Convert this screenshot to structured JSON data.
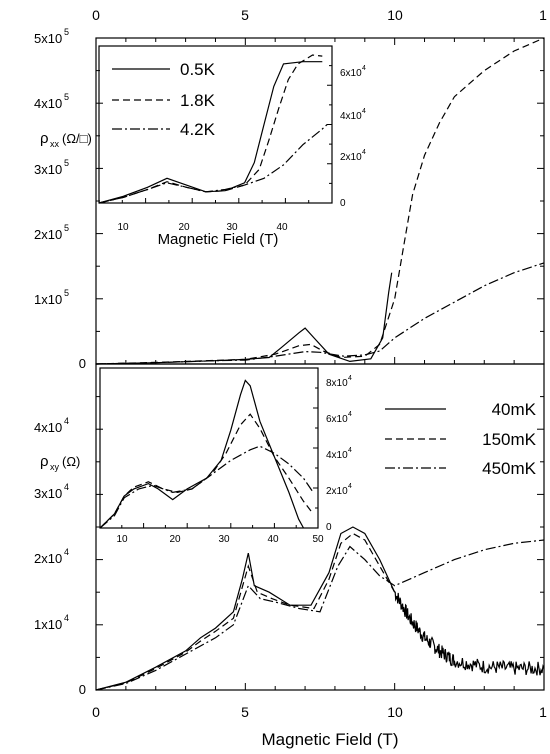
{
  "chart_data": [
    {
      "type": "line",
      "name": "rho_xx main",
      "ylabel_main": "ρ",
      "ylabel_sub": "xx",
      "ylabel_unit": "(Ω/□)",
      "xlim": [
        0,
        15
      ],
      "ylim": [
        0,
        500000
      ],
      "x_ticks": [
        "0",
        "5",
        "10",
        "1"
      ],
      "y_ticks": [
        "0",
        "1x10",
        "2x10",
        "3x10",
        "4x10",
        "5x10"
      ],
      "y_tick_exp": "5",
      "series": [
        {
          "style": "solid",
          "points": [
            [
              0,
              0
            ],
            [
              2,
              2000
            ],
            [
              4,
              5000
            ],
            [
              5,
              7000
            ],
            [
              5.8,
              10000
            ],
            [
              6.2,
              25000
            ],
            [
              6.8,
              48000
            ],
            [
              7.0,
              55000
            ],
            [
              7.3,
              40000
            ],
            [
              7.8,
              15000
            ],
            [
              8.5,
              4000
            ],
            [
              9.2,
              8000
            ],
            [
              9.6,
              40000
            ],
            [
              9.8,
              110000
            ],
            [
              9.9,
              140000
            ]
          ]
        },
        {
          "style": "dashed",
          "points": [
            [
              0,
              0
            ],
            [
              2,
              2500
            ],
            [
              4,
              5500
            ],
            [
              5,
              7000
            ],
            [
              6,
              15000
            ],
            [
              6.8,
              28000
            ],
            [
              7.2,
              30000
            ],
            [
              7.6,
              20000
            ],
            [
              8.2,
              10000
            ],
            [
              9,
              12000
            ],
            [
              9.5,
              30000
            ],
            [
              10,
              100000
            ],
            [
              10.3,
              180000
            ],
            [
              10.6,
              260000
            ],
            [
              11,
              320000
            ],
            [
              11.5,
              370000
            ],
            [
              12,
              410000
            ],
            [
              13,
              450000
            ],
            [
              14,
              480000
            ],
            [
              15,
              500000
            ]
          ]
        },
        {
          "style": "dashdot",
          "points": [
            [
              0,
              0
            ],
            [
              2,
              2000
            ],
            [
              4,
              5000
            ],
            [
              5,
              6000
            ],
            [
              6,
              12000
            ],
            [
              7,
              19000
            ],
            [
              7.5,
              18000
            ],
            [
              8.3,
              12000
            ],
            [
              9,
              14000
            ],
            [
              9.5,
              20000
            ],
            [
              10,
              40000
            ],
            [
              10.5,
              55000
            ],
            [
              11,
              70000
            ],
            [
              12,
              95000
            ],
            [
              13,
              120000
            ],
            [
              14,
              140000
            ],
            [
              15,
              155000
            ]
          ]
        }
      ]
    },
    {
      "type": "line",
      "name": "rho_xx inset",
      "xlabel": "Magnetic Field (T)",
      "xlim": [
        0,
        48
      ],
      "ylim": [
        0,
        70000
      ],
      "x_ticks": [
        "10",
        "20",
        "30",
        "40"
      ],
      "y_ticks_right": [
        "0",
        "2x10",
        "4x10",
        "6x10"
      ],
      "y_tick_exp": "4",
      "legend": [
        "0.5K",
        "1.8K",
        "4.2K"
      ],
      "series": [
        {
          "name": "0.5K",
          "style": "solid",
          "points": [
            [
              0,
              0
            ],
            [
              5,
              3000
            ],
            [
              10,
              7000
            ],
            [
              14,
              11000
            ],
            [
              18,
              8000
            ],
            [
              22,
              5000
            ],
            [
              26,
              5500
            ],
            [
              30,
              9000
            ],
            [
              32,
              18000
            ],
            [
              34,
              35000
            ],
            [
              36,
              52000
            ],
            [
              38,
              62000
            ],
            [
              42,
              63000
            ],
            [
              46,
              63000
            ]
          ]
        },
        {
          "name": "1.8K",
          "style": "dashed",
          "points": [
            [
              0,
              0
            ],
            [
              5,
              2500
            ],
            [
              10,
              6000
            ],
            [
              14,
              9500
            ],
            [
              18,
              7000
            ],
            [
              22,
              5000
            ],
            [
              26,
              5500
            ],
            [
              30,
              8000
            ],
            [
              33,
              15000
            ],
            [
              35,
              28000
            ],
            [
              37,
              42000
            ],
            [
              39,
              55000
            ],
            [
              41,
              62000
            ],
            [
              44,
              66000
            ],
            [
              46,
              65500
            ]
          ]
        },
        {
          "name": "4.2K",
          "style": "dashdot",
          "points": [
            [
              0,
              0
            ],
            [
              5,
              2500
            ],
            [
              10,
              6000
            ],
            [
              14,
              9000
            ],
            [
              18,
              7000
            ],
            [
              22,
              5000
            ],
            [
              26,
              6000
            ],
            [
              30,
              8000
            ],
            [
              34,
              11000
            ],
            [
              38,
              17000
            ],
            [
              42,
              26000
            ],
            [
              46,
              33000
            ],
            [
              47,
              35000
            ]
          ]
        }
      ]
    },
    {
      "type": "line",
      "name": "rho_xy main",
      "xlabel": "Magnetic Field (T)",
      "ylabel_main": "ρ",
      "ylabel_sub": "xy",
      "ylabel_unit": "(Ω)",
      "xlim": [
        0,
        15
      ],
      "ylim": [
        0,
        50000
      ],
      "x_ticks": [
        "0",
        "5",
        "10",
        "1"
      ],
      "y_ticks": [
        "0",
        "1x10",
        "2x10",
        "3x10",
        "4x10"
      ],
      "y_tick_exp": "4",
      "legend": [
        "40mK",
        "150mK",
        "450mK"
      ],
      "series": [
        {
          "name": "40mK",
          "style": "solid",
          "points": [
            [
              0,
              0
            ],
            [
              1,
              1200
            ],
            [
              2,
              3500
            ],
            [
              3,
              6000
            ],
            [
              3.5,
              8000
            ],
            [
              4,
              9500
            ],
            [
              4.6,
              12000
            ],
            [
              4.9,
              17000
            ],
            [
              5.1,
              21000
            ],
            [
              5.3,
              16000
            ],
            [
              5.8,
              15000
            ],
            [
              6.5,
              13000
            ],
            [
              7.2,
              13000
            ],
            [
              7.8,
              18000
            ],
            [
              8.2,
              24000
            ],
            [
              8.6,
              25000
            ],
            [
              9,
              24000
            ],
            [
              9.5,
              20000
            ],
            [
              10,
              15000
            ]
          ]
        },
        {
          "name": "150mK",
          "style": "dashed",
          "points": [
            [
              0,
              0
            ],
            [
              1,
              1100
            ],
            [
              2,
              3300
            ],
            [
              3,
              5800
            ],
            [
              3.5,
              7500
            ],
            [
              4,
              9000
            ],
            [
              4.6,
              11000
            ],
            [
              5.1,
              19000
            ],
            [
              5.4,
              15000
            ],
            [
              5.9,
              14000
            ],
            [
              6.5,
              13000
            ],
            [
              7.3,
              12500
            ],
            [
              7.8,
              17000
            ],
            [
              8.2,
              22500
            ],
            [
              8.6,
              24000
            ],
            [
              9,
              23000
            ],
            [
              9.5,
              19000
            ],
            [
              10,
              15000
            ]
          ]
        },
        {
          "name": "450mK",
          "style": "dashdot",
          "points": [
            [
              0,
              0
            ],
            [
              1,
              1000
            ],
            [
              2,
              3000
            ],
            [
              3,
              5500
            ],
            [
              4,
              8000
            ],
            [
              4.6,
              10000
            ],
            [
              5.1,
              16000
            ],
            [
              5.5,
              14000
            ],
            [
              6,
              13500
            ],
            [
              6.8,
              12500
            ],
            [
              7.5,
              12000
            ],
            [
              8.1,
              19000
            ],
            [
              8.5,
              22000
            ],
            [
              9,
              20000
            ],
            [
              9.5,
              17500
            ],
            [
              10,
              16000
            ],
            [
              11,
              18000
            ],
            [
              12,
              20000
            ],
            [
              13,
              21500
            ],
            [
              14,
              22500
            ],
            [
              15,
              23000
            ]
          ]
        },
        {
          "name": "noisy",
          "style": "solid",
          "noisy": true,
          "points": [
            [
              10,
              15000
            ],
            [
              10.5,
              11000
            ],
            [
              11,
              8000
            ],
            [
              11.5,
              6000
            ],
            [
              12,
              4500
            ],
            [
              13,
              3600
            ],
            [
              14,
              3300
            ],
            [
              15,
              3300
            ]
          ]
        }
      ]
    },
    {
      "type": "line",
      "name": "rho_xy inset",
      "xlim": [
        3,
        48
      ],
      "ylim": [
        0,
        90000
      ],
      "x_ticks": [
        "10",
        "20",
        "30",
        "40",
        "50"
      ],
      "y_ticks_right": [
        "0",
        "2x10",
        "4x10",
        "6x10",
        "8x10"
      ],
      "y_tick_exp": "4",
      "series": [
        {
          "style": "solid",
          "points": [
            [
              3,
              0
            ],
            [
              6,
              8000
            ],
            [
              8,
              18000
            ],
            [
              10,
              22000
            ],
            [
              13,
              25000
            ],
            [
              15,
              22000
            ],
            [
              18,
              16000
            ],
            [
              21,
              22000
            ],
            [
              25,
              28000
            ],
            [
              28,
              38000
            ],
            [
              30,
              55000
            ],
            [
              32,
              75000
            ],
            [
              33,
              83000
            ],
            [
              34,
              80000
            ],
            [
              36,
              60000
            ],
            [
              39,
              40000
            ],
            [
              42,
              20000
            ],
            [
              44,
              5000
            ],
            [
              45,
              0
            ]
          ]
        },
        {
          "style": "dashed",
          "points": [
            [
              3,
              0
            ],
            [
              6,
              8000
            ],
            [
              8,
              18000
            ],
            [
              10,
              23000
            ],
            [
              13,
              26000
            ],
            [
              16,
              22000
            ],
            [
              19,
              20000
            ],
            [
              22,
              22000
            ],
            [
              26,
              30000
            ],
            [
              29,
              42000
            ],
            [
              32,
              58000
            ],
            [
              34,
              64000
            ],
            [
              36,
              56000
            ],
            [
              39,
              40000
            ],
            [
              42,
              28000
            ],
            [
              45,
              15000
            ],
            [
              47,
              8000
            ]
          ]
        },
        {
          "style": "dashdot",
          "points": [
            [
              3,
              0
            ],
            [
              6,
              7000
            ],
            [
              8,
              17000
            ],
            [
              11,
              22000
            ],
            [
              14,
              24000
            ],
            [
              18,
              20000
            ],
            [
              22,
              22000
            ],
            [
              26,
              30000
            ],
            [
              30,
              38000
            ],
            [
              34,
              44000
            ],
            [
              36,
              46000
            ],
            [
              39,
              42000
            ],
            [
              42,
              36000
            ],
            [
              45,
              28000
            ],
            [
              47,
              20000
            ]
          ]
        }
      ]
    }
  ]
}
